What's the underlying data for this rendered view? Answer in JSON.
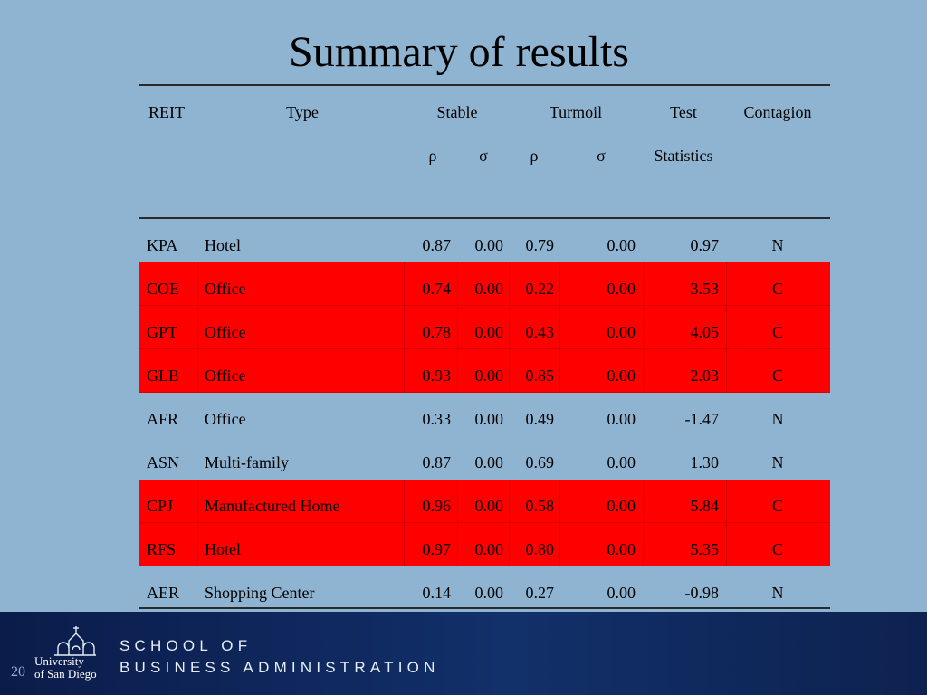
{
  "slide": {
    "title": "Summary of results",
    "page_number": "20"
  },
  "table": {
    "headers": {
      "reit": "REIT",
      "type": "Type",
      "stable": "Stable",
      "turmoil": "Turmoil",
      "test": "Test",
      "test2": "Statistics",
      "contagion": "Contagion",
      "rho1": "ρ",
      "sigma1": "σ",
      "rho2": "ρ",
      "sigma2": "σ"
    },
    "rows": [
      {
        "reit": "KPA",
        "type": "Hotel",
        "s_rho": "0.87",
        "s_sigma": "0.00",
        "t_rho": "0.79",
        "t_sigma": "0.00",
        "stat": "0.97",
        "contagion": "N",
        "highlight": false
      },
      {
        "reit": "COE",
        "type": "Office",
        "s_rho": "0.74",
        "s_sigma": "0.00",
        "t_rho": "0.22",
        "t_sigma": "0.00",
        "stat": "3.53",
        "contagion": "C",
        "highlight": true
      },
      {
        "reit": "GPT",
        "type": "Office",
        "s_rho": "0.78",
        "s_sigma": "0.00",
        "t_rho": "0.43",
        "t_sigma": "0.00",
        "stat": "4.05",
        "contagion": "C",
        "highlight": true
      },
      {
        "reit": "GLB",
        "type": "Office",
        "s_rho": "0.93",
        "s_sigma": "0.00",
        "t_rho": "0.85",
        "t_sigma": "0.00",
        "stat": "2.03",
        "contagion": "C",
        "highlight": true
      },
      {
        "reit": "AFR",
        "type": "Office",
        "s_rho": "0.33",
        "s_sigma": "0.00",
        "t_rho": "0.49",
        "t_sigma": "0.00",
        "stat": "-1.47",
        "contagion": "N",
        "highlight": false
      },
      {
        "reit": "ASN",
        "type": "Multi-family",
        "s_rho": "0.87",
        "s_sigma": "0.00",
        "t_rho": "0.69",
        "t_sigma": "0.00",
        "stat": "1.30",
        "contagion": "N",
        "highlight": false
      },
      {
        "reit": "CPJ",
        "type": "Manufactured Home",
        "s_rho": "0.96",
        "s_sigma": "0.00",
        "t_rho": "0.58",
        "t_sigma": "0.00",
        "stat": "5.84",
        "contagion": "C",
        "highlight": true
      },
      {
        "reit": "RFS",
        "type": "Hotel",
        "s_rho": "0.97",
        "s_sigma": "0.00",
        "t_rho": "0.80",
        "t_sigma": "0.00",
        "stat": "5.35",
        "contagion": "C",
        "highlight": true
      },
      {
        "reit": "AER",
        "type": "Shopping Center",
        "s_rho": "0.14",
        "s_sigma": "0.00",
        "t_rho": "0.27",
        "t_sigma": "0.00",
        "stat": "-0.98",
        "contagion": "N",
        "highlight": false
      }
    ]
  },
  "footer": {
    "school_line1": "SCHOOL OF",
    "school_line2": "BUSINESS ADMINISTRATION",
    "logo_line1": "University",
    "logo_line2": "of San Diego",
    "logo_icon": "mission-tower-icon"
  },
  "colors": {
    "background": "#8fb4d2",
    "highlight": "#ff0000",
    "footer": "#0b1c4a"
  }
}
